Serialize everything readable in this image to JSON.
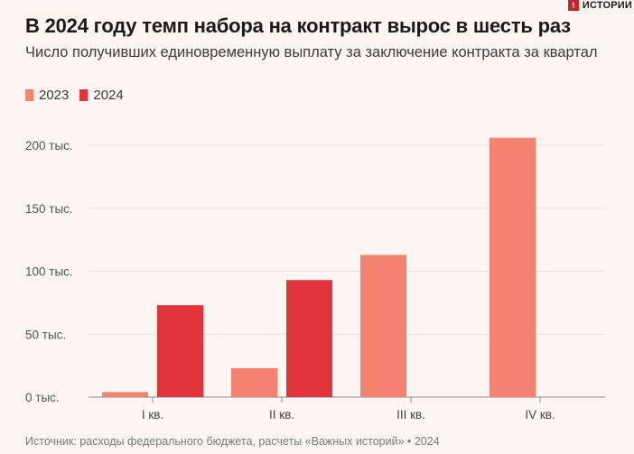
{
  "brand": {
    "mark": "!",
    "name": "ИСТОРИИ"
  },
  "header": {
    "title": "В 2024 году темп набора на контракт вырос в шесть раз",
    "subtitle": "Число получивших единовременную выплату за заключение контракта за квартал"
  },
  "legend": [
    {
      "label": "2023",
      "color": "#f4836f"
    },
    {
      "label": "2024",
      "color": "#de343a"
    }
  ],
  "footer": {
    "source": "Источник: расходы федерального бюджета, расчеты «Важных историй» • 2024"
  },
  "chart_data": {
    "type": "bar",
    "categories": [
      "I кв.",
      "II кв.",
      "III кв.",
      "IV кв."
    ],
    "series": [
      {
        "name": "2023",
        "color": "#f4836f",
        "values": [
          4000,
          23000,
          113000,
          206000
        ]
      },
      {
        "name": "2024",
        "color": "#de343a",
        "values": [
          73000,
          93000,
          null,
          null
        ]
      }
    ],
    "yticks": [
      0,
      50000,
      100000,
      150000,
      200000
    ],
    "ytick_labels": [
      "0 тыс.",
      "50 тыс.",
      "100 тыс.",
      "150 тыс.",
      "200 тыс."
    ],
    "ylim": [
      0,
      200000
    ],
    "grid": true,
    "title": "В 2024 году темп набора на контракт вырос в шесть раз",
    "xlabel": "",
    "ylabel": ""
  }
}
